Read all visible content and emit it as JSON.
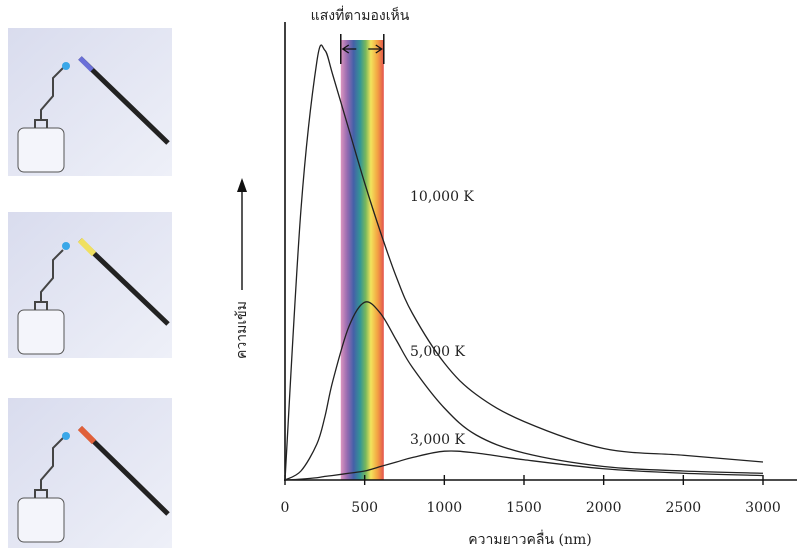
{
  "chart_data": {
    "type": "line",
    "title": "แสงที่ตามองเห็น",
    "x_label": "ความยาวคลื่น (nm)",
    "y_label": "ความเข้ม",
    "x": [
      0,
      100,
      200,
      250,
      300,
      400,
      500,
      600,
      700,
      800,
      1000,
      1200,
      1500,
      2000,
      2500,
      3000
    ],
    "series": [
      {
        "name": "10,000 K",
        "color": "#222222",
        "values": [
          0,
          60,
          93,
          95.5,
          90,
          78,
          66,
          55,
          45,
          37,
          26,
          19,
          13,
          7,
          5.5,
          4
        ]
      },
      {
        "name": "5,000 K",
        "color": "#222222",
        "values": [
          0,
          2,
          8,
          14,
          22,
          34,
          39.5,
          37,
          31,
          25,
          16,
          10,
          6,
          3,
          2,
          1.5
        ]
      },
      {
        "name": "3,000 K",
        "color": "#222222",
        "values": [
          0,
          0.2,
          0.5,
          0.8,
          1,
          1.5,
          2,
          3,
          4,
          5,
          6.4,
          6,
          4.5,
          2.5,
          1.5,
          1
        ]
      }
    ],
    "visible_band": [
      350,
      620
    ],
    "xlim": [
      0,
      3000
    ],
    "xticks": [
      0,
      500,
      1000,
      1500,
      2000,
      2500,
      3000
    ],
    "ylim": [
      0,
      100
    ]
  }
}
